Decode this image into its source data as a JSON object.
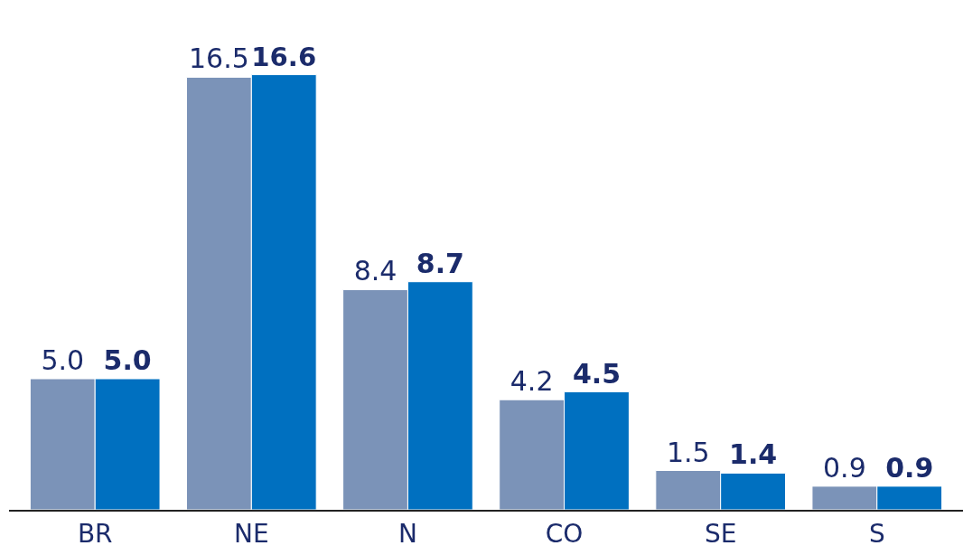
{
  "chart_data": {
    "type": "bar",
    "categories": [
      "BR",
      "NE",
      "N",
      "CO",
      "SE",
      "S"
    ],
    "series": [
      {
        "color": "#7b93b8",
        "values": [
          5.0,
          16.5,
          8.4,
          4.2,
          1.5,
          0.9
        ],
        "value_labels": [
          "5.0",
          "16.5",
          "8.4",
          "4.2",
          "1.5",
          "0.9"
        ]
      },
      {
        "color": "#0070c0",
        "values": [
          5.0,
          16.6,
          8.7,
          4.5,
          1.4,
          0.9
        ],
        "value_labels": [
          "5.0",
          "16.6",
          "8.7",
          "4.5",
          "1.4",
          "0.9"
        ]
      }
    ]
  }
}
